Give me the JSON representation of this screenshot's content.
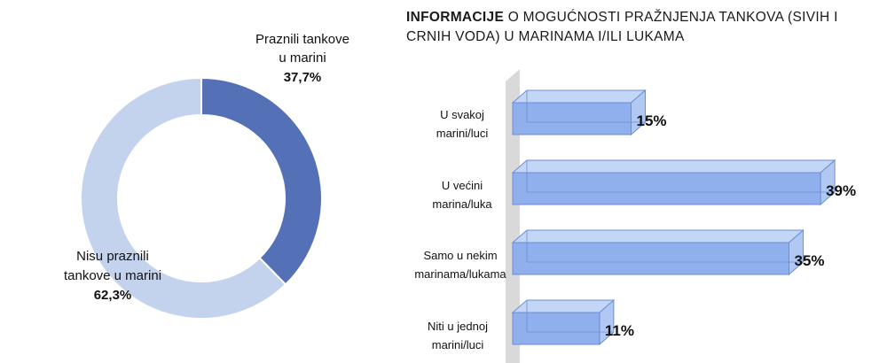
{
  "chart_data": [
    {
      "type": "pie",
      "variant": "donut",
      "slices": [
        {
          "label_lines": [
            "Praznili tankove",
            "u marini"
          ],
          "pct_text": "37,7%",
          "value": 37.7,
          "color": "#5470b6"
        },
        {
          "label_lines": [
            "Nisu praznili",
            "tankove u marini"
          ],
          "pct_text": "62,3%",
          "value": 62.3,
          "color": "#c3d3ee"
        }
      ]
    },
    {
      "type": "bar",
      "orientation": "horizontal",
      "style": "3d",
      "title": {
        "bold_part": "INFORMACIJE",
        "rest_line1": " O MOGUĆNOSTI PRAŽNJENJA TANKOVA (SIVIH I",
        "line2": "CRNIH VODA) U MARINAMA I/ILI LUKAMA"
      },
      "categories": [
        {
          "lines": [
            "U svakoj",
            "marini/luci"
          ]
        },
        {
          "lines": [
            "U većini",
            "marina/luka"
          ]
        },
        {
          "lines": [
            "Samo u nekim",
            "marinama/lukama"
          ]
        },
        {
          "lines": [
            "Niti u jednoj",
            "marini/luci"
          ]
        }
      ],
      "values": [
        15,
        39,
        35,
        11
      ],
      "value_labels": [
        "15%",
        "39%",
        "35%",
        "11%"
      ],
      "xlim": [
        0,
        40
      ],
      "bar_color": "#8fb0ec",
      "wall_color": "#d9d9d9"
    }
  ]
}
